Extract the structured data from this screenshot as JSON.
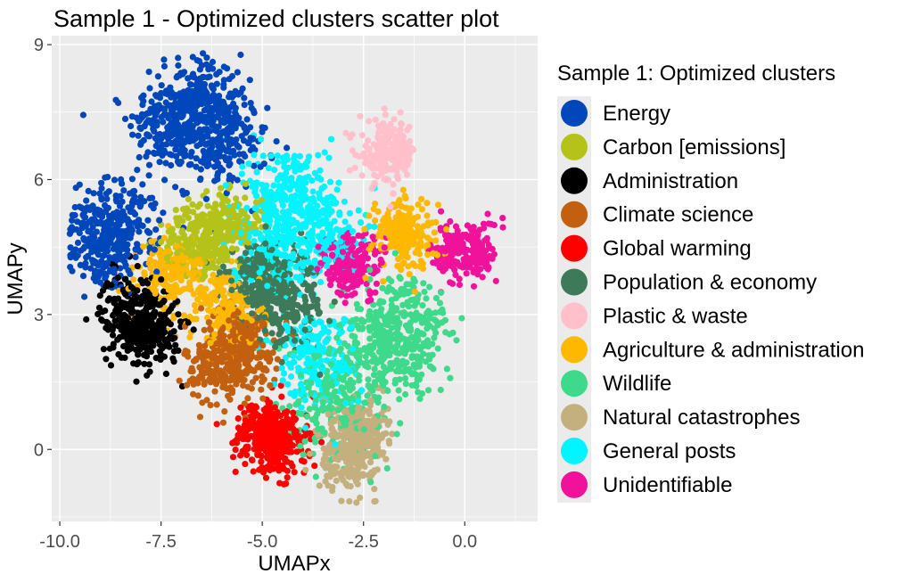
{
  "chart_data": {
    "type": "scatter",
    "title": "Sample 1 - Optimized clusters scatter plot",
    "xlabel": "UMAPx",
    "ylabel": "UMAPy",
    "xlim": [
      -10.2,
      1.8
    ],
    "ylim": [
      -1.6,
      9.2
    ],
    "x_ticks": [
      -10.0,
      -7.5,
      -5.0,
      -2.5,
      0.0
    ],
    "x_tick_labels": [
      "-10.0",
      "-7.5",
      "-5.0",
      "-2.5",
      "0.0"
    ],
    "y_ticks": [
      0,
      3,
      6,
      9
    ],
    "y_tick_labels": [
      "0",
      "3",
      "6",
      "9"
    ],
    "grid": true,
    "legend_title": "Sample 1: Optimized clusters",
    "legend_position": "right",
    "series": [
      {
        "name": "Energy",
        "color": "#0047BB",
        "centers": [
          [
            -7.2,
            7.2
          ],
          [
            -6.6,
            7.8
          ],
          [
            -8.6,
            5.0
          ],
          [
            -6.0,
            6.8
          ],
          [
            -9.0,
            4.5
          ]
        ],
        "spread": [
          0.55,
          0.5
        ]
      },
      {
        "name": "Carbon [emissions]",
        "color": "#B5C219",
        "centers": [
          [
            -6.6,
            4.6
          ],
          [
            -5.9,
            5.0
          ]
        ],
        "spread": [
          0.45,
          0.35
        ]
      },
      {
        "name": "Administration",
        "color": "#000000",
        "centers": [
          [
            -7.7,
            2.7
          ],
          [
            -8.3,
            3.0
          ]
        ],
        "spread": [
          0.35,
          0.45
        ]
      },
      {
        "name": "Climate science",
        "color": "#C2600F",
        "centers": [
          [
            -6.0,
            1.9
          ],
          [
            -5.5,
            2.3
          ]
        ],
        "spread": [
          0.45,
          0.45
        ]
      },
      {
        "name": "Global warming",
        "color": "#FF0000",
        "centers": [
          [
            -5.0,
            0.4
          ],
          [
            -4.6,
            0.1
          ]
        ],
        "spread": [
          0.35,
          0.35
        ]
      },
      {
        "name": "Population & economy",
        "color": "#3E7A5A",
        "centers": [
          [
            -5.0,
            3.8
          ],
          [
            -4.4,
            3.2
          ]
        ],
        "spread": [
          0.5,
          0.45
        ]
      },
      {
        "name": "Plastic & waste",
        "color": "#FFC0CB",
        "centers": [
          [
            -1.9,
            6.6
          ]
        ],
        "spread": [
          0.35,
          0.35
        ]
      },
      {
        "name": "Agriculture & administration",
        "color": "#FFB800",
        "centers": [
          [
            -7.2,
            3.9
          ],
          [
            -1.5,
            4.8
          ],
          [
            -5.7,
            3.1
          ]
        ],
        "spread": [
          0.4,
          0.4
        ]
      },
      {
        "name": "Wildlife",
        "color": "#3ED98A",
        "centers": [
          [
            -2.0,
            2.2
          ],
          [
            -1.4,
            2.6
          ],
          [
            -3.2,
            1.2
          ]
        ],
        "spread": [
          0.55,
          0.65
        ]
      },
      {
        "name": "Natural catastrophes",
        "color": "#C4B07E",
        "centers": [
          [
            -2.9,
            -0.2
          ],
          [
            -2.6,
            0.4
          ]
        ],
        "spread": [
          0.35,
          0.35
        ]
      },
      {
        "name": "General posts",
        "color": "#00F5FF",
        "centers": [
          [
            -4.3,
            5.7
          ],
          [
            -3.6,
            4.8
          ],
          [
            -4.8,
            4.6
          ],
          [
            -3.7,
            2.0
          ]
        ],
        "spread": [
          0.5,
          0.55
        ]
      },
      {
        "name": "Unidentifiable",
        "color": "#F0129B",
        "centers": [
          [
            -2.8,
            4.1
          ],
          [
            0.0,
            4.4
          ]
        ],
        "spread": [
          0.4,
          0.35
        ]
      }
    ]
  }
}
